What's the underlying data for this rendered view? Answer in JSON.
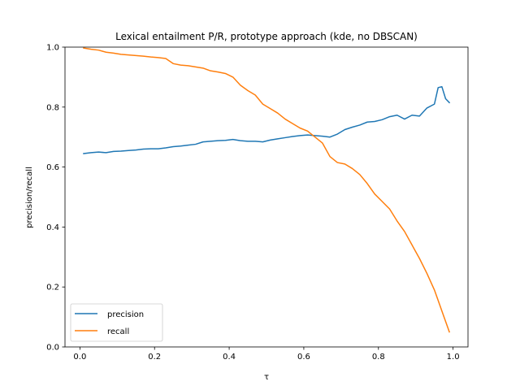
{
  "chart_data": {
    "type": "line",
    "title": "Lexical entailment P/R, prototype approach (kde, no DBSCAN)",
    "xlabel": "τ",
    "ylabel": "precision/recall",
    "xlim": [
      -0.04,
      1.04
    ],
    "ylim": [
      0.0,
      1.0
    ],
    "xticks": [
      0.0,
      0.2,
      0.4,
      0.6,
      0.8,
      1.0
    ],
    "xtick_labels": [
      "0.0",
      "0.2",
      "0.4",
      "0.6",
      "0.8",
      "1.0"
    ],
    "yticks": [
      0.0,
      0.2,
      0.4,
      0.6,
      0.8,
      1.0
    ],
    "ytick_labels": [
      "0.0",
      "0.2",
      "0.4",
      "0.6",
      "0.8",
      "1.0"
    ],
    "grid": false,
    "legend_position": "lower-left",
    "series": [
      {
        "name": "precision",
        "color": "#1f77b4",
        "x": [
          0.01,
          0.03,
          0.05,
          0.07,
          0.09,
          0.11,
          0.13,
          0.15,
          0.17,
          0.19,
          0.21,
          0.23,
          0.25,
          0.27,
          0.29,
          0.31,
          0.33,
          0.35,
          0.37,
          0.39,
          0.41,
          0.43,
          0.45,
          0.47,
          0.49,
          0.51,
          0.53,
          0.55,
          0.57,
          0.59,
          0.61,
          0.63,
          0.65,
          0.67,
          0.69,
          0.71,
          0.73,
          0.75,
          0.77,
          0.79,
          0.81,
          0.83,
          0.85,
          0.87,
          0.89,
          0.91,
          0.93,
          0.95,
          0.96,
          0.97,
          0.98,
          0.99
        ],
        "values": [
          0.645,
          0.648,
          0.65,
          0.648,
          0.652,
          0.653,
          0.655,
          0.657,
          0.66,
          0.661,
          0.661,
          0.664,
          0.668,
          0.67,
          0.673,
          0.676,
          0.684,
          0.686,
          0.688,
          0.689,
          0.692,
          0.688,
          0.686,
          0.686,
          0.684,
          0.69,
          0.694,
          0.698,
          0.702,
          0.705,
          0.707,
          0.705,
          0.703,
          0.7,
          0.71,
          0.725,
          0.733,
          0.74,
          0.75,
          0.752,
          0.758,
          0.768,
          0.773,
          0.76,
          0.773,
          0.77,
          0.797,
          0.81,
          0.865,
          0.868,
          0.828,
          0.815
        ]
      },
      {
        "name": "recall",
        "color": "#ff7f0e",
        "x": [
          0.01,
          0.03,
          0.05,
          0.07,
          0.09,
          0.11,
          0.13,
          0.15,
          0.17,
          0.19,
          0.21,
          0.23,
          0.25,
          0.27,
          0.29,
          0.31,
          0.33,
          0.35,
          0.37,
          0.39,
          0.41,
          0.43,
          0.45,
          0.47,
          0.49,
          0.51,
          0.53,
          0.55,
          0.57,
          0.59,
          0.61,
          0.63,
          0.65,
          0.67,
          0.69,
          0.71,
          0.73,
          0.75,
          0.77,
          0.79,
          0.81,
          0.83,
          0.85,
          0.87,
          0.89,
          0.91,
          0.93,
          0.95,
          0.96,
          0.97,
          0.98,
          0.99
        ],
        "values": [
          0.997,
          0.993,
          0.99,
          0.983,
          0.98,
          0.976,
          0.974,
          0.972,
          0.97,
          0.967,
          0.965,
          0.962,
          0.945,
          0.94,
          0.938,
          0.934,
          0.93,
          0.921,
          0.917,
          0.912,
          0.9,
          0.873,
          0.855,
          0.84,
          0.81,
          0.795,
          0.78,
          0.76,
          0.745,
          0.73,
          0.72,
          0.7,
          0.68,
          0.635,
          0.615,
          0.61,
          0.595,
          0.575,
          0.545,
          0.51,
          0.485,
          0.46,
          0.42,
          0.385,
          0.34,
          0.295,
          0.245,
          0.19,
          0.155,
          0.12,
          0.085,
          0.05
        ]
      }
    ]
  }
}
